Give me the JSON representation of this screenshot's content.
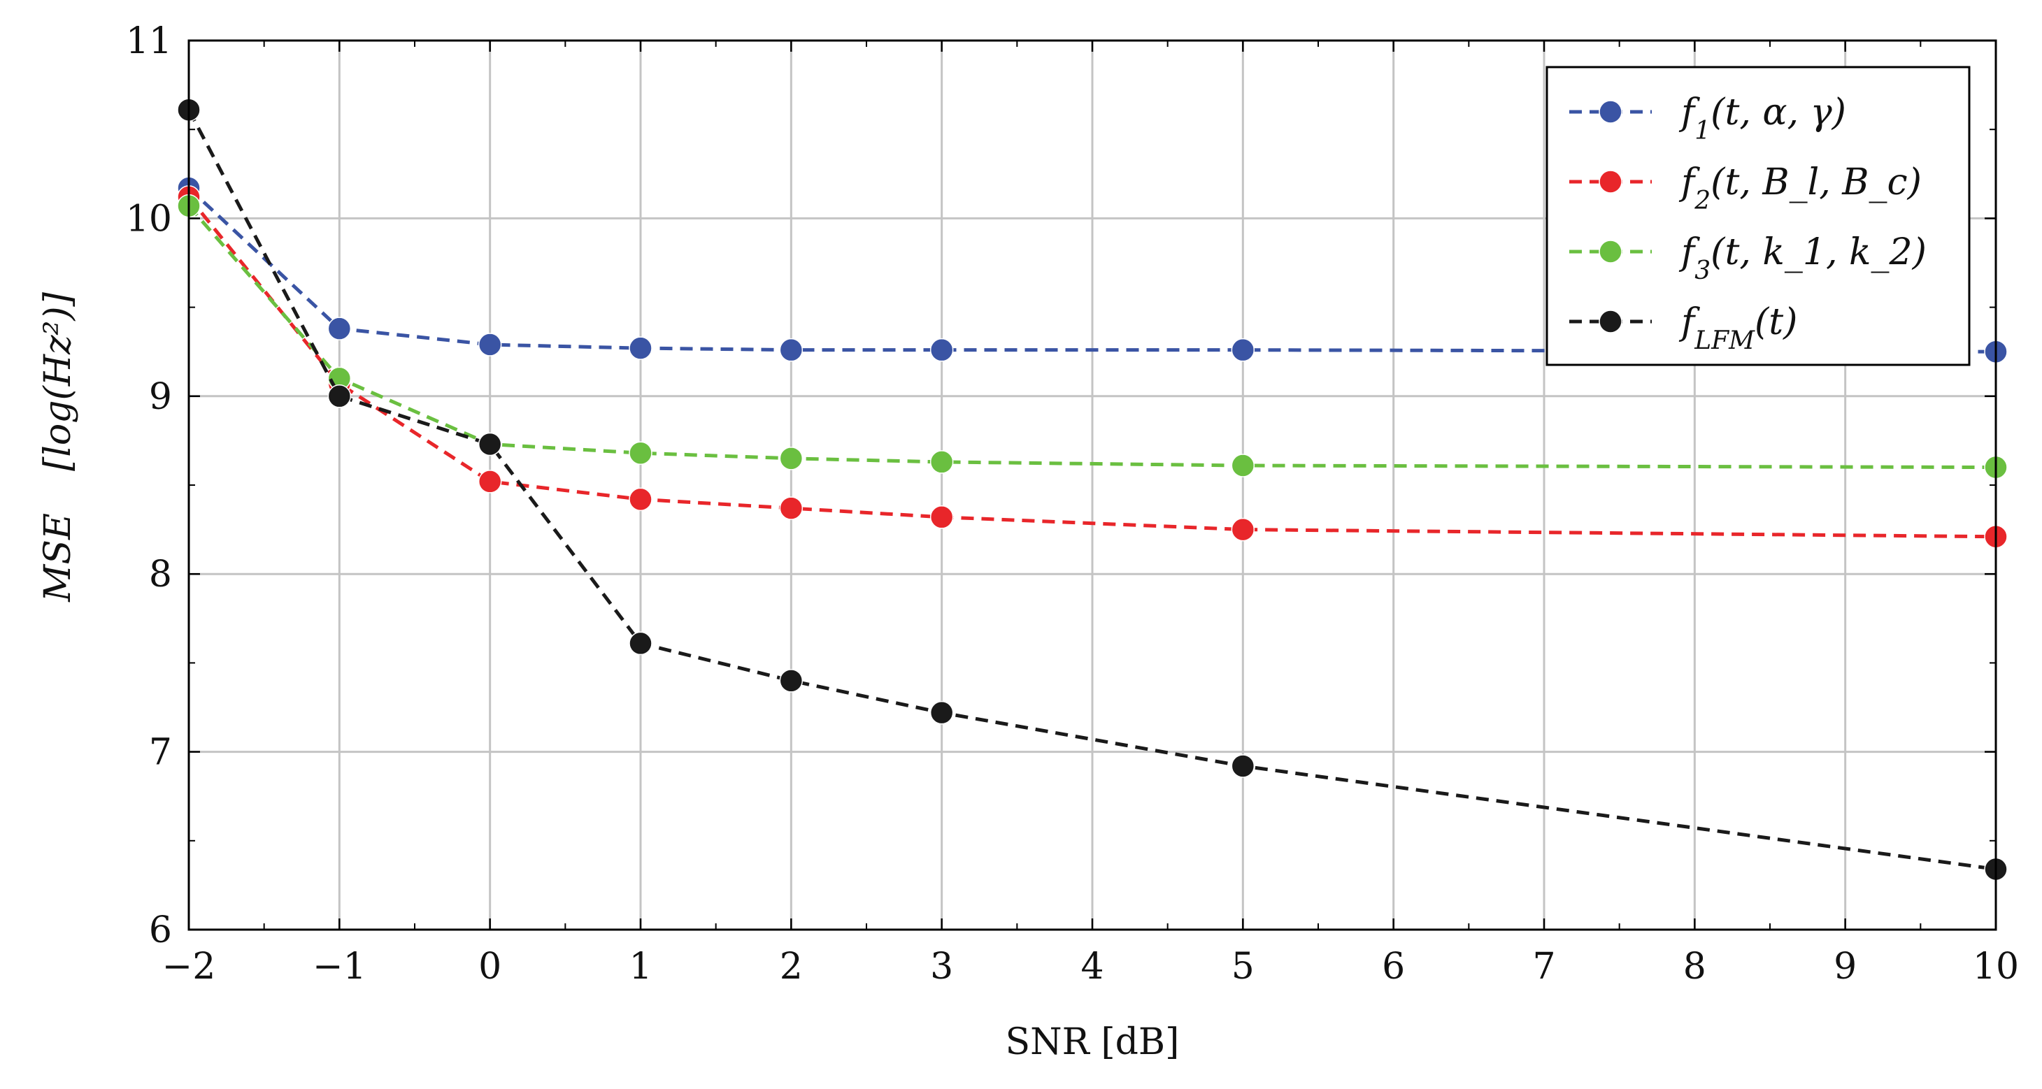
{
  "chart_data": {
    "type": "line",
    "title": "",
    "xlabel": "SNR [dB]",
    "ylabel": {
      "main": "MSE",
      "unit": "[log(Hz²)]"
    },
    "xlim": [
      -2,
      10
    ],
    "ylim": [
      6,
      11
    ],
    "grid": true,
    "legend_position": "top-right",
    "x_ticks": [
      -2,
      -1,
      0,
      1,
      2,
      3,
      4,
      5,
      6,
      7,
      8,
      9,
      10
    ],
    "x_tick_labels": [
      "−2",
      "−1",
      "0",
      "1",
      "2",
      "3",
      "4",
      "5",
      "6",
      "7",
      "8",
      "9",
      "10"
    ],
    "x_minor_ticks": [
      -1.5,
      -0.5,
      0.5,
      1.5,
      2.5,
      3.5,
      4.5,
      5.5,
      6.5,
      7.5,
      8.5,
      9.5
    ],
    "y_ticks": [
      6,
      7,
      8,
      9,
      10,
      11
    ],
    "y_tick_labels": [
      "6",
      "7",
      "8",
      "9",
      "10",
      "11"
    ],
    "y_minor_ticks": [
      6.5,
      7.5,
      8.5,
      9.5,
      10.5
    ],
    "x": [
      -2,
      -1,
      0,
      1,
      2,
      3,
      5,
      10
    ],
    "series": [
      {
        "name": "f1(t, α, γ)",
        "color": "#3a54a4",
        "values": [
          10.17,
          9.38,
          9.29,
          9.27,
          9.26,
          9.26,
          9.26,
          9.25
        ]
      },
      {
        "name": "f2(t, Bl, Bc)",
        "color": "#e8262a",
        "values": [
          10.12,
          9.07,
          8.52,
          8.42,
          8.37,
          8.32,
          8.25,
          8.21
        ]
      },
      {
        "name": "f3(t, k1, k2)",
        "color": "#6abf40",
        "values": [
          10.07,
          9.1,
          8.73,
          8.68,
          8.65,
          8.63,
          8.61,
          8.6
        ]
      },
      {
        "name": "fLFM(t)",
        "color": "#1a1a1a",
        "values": [
          10.61,
          9.0,
          8.73,
          7.61,
          7.4,
          7.22,
          6.92,
          6.34
        ]
      }
    ],
    "legend_entries": [
      {
        "base": "f",
        "sub": "1",
        "args": "(t, α, γ)"
      },
      {
        "base": "f",
        "sub": "2",
        "args": "(t, B_l, B_c)"
      },
      {
        "base": "f",
        "sub": "3",
        "args": "(t, k_1, k_2)"
      },
      {
        "base": "f",
        "sub": "LFM",
        "args": "(t)"
      }
    ]
  }
}
